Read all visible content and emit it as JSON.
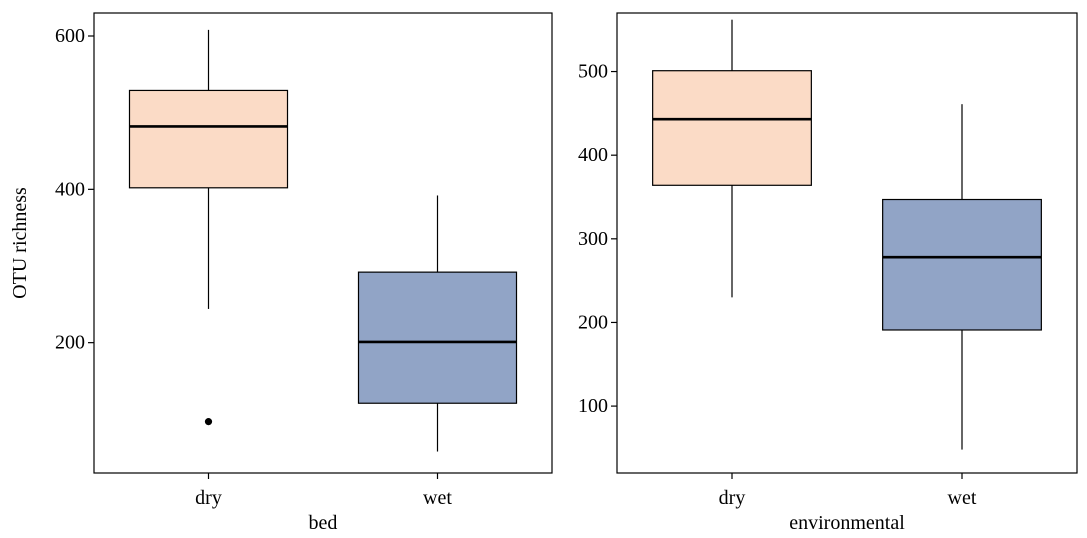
{
  "chart_data": [
    {
      "type": "box",
      "xlabel": "bed",
      "ylabel": "OTU richness",
      "ylim": [
        30,
        630
      ],
      "yticks": [
        200,
        400,
        600
      ],
      "categories": [
        "dry",
        "wet"
      ],
      "colors": {
        "dry": "#fbdbc6",
        "wet": "#91a4c6"
      },
      "boxes": [
        {
          "category": "dry",
          "whisker_low": 244,
          "q1": 402,
          "median": 482,
          "q3": 529,
          "whisker_high": 608,
          "outliers": [
            97
          ]
        },
        {
          "category": "wet",
          "whisker_low": 58,
          "q1": 121,
          "median": 201,
          "q3": 292,
          "whisker_high": 392,
          "outliers": []
        }
      ]
    },
    {
      "type": "box",
      "xlabel": "environmental",
      "ylabel": "",
      "ylim": [
        20,
        570
      ],
      "yticks": [
        100,
        200,
        300,
        400,
        500
      ],
      "categories": [
        "dry",
        "wet"
      ],
      "colors": {
        "dry": "#fbdbc6",
        "wet": "#91a4c6"
      },
      "boxes": [
        {
          "category": "dry",
          "whisker_low": 230,
          "q1": 364,
          "median": 443,
          "q3": 501,
          "whisker_high": 562,
          "outliers": []
        },
        {
          "category": "wet",
          "whisker_low": 48,
          "q1": 191,
          "median": 278,
          "q3": 347,
          "whisker_high": 461,
          "outliers": []
        }
      ]
    }
  ]
}
